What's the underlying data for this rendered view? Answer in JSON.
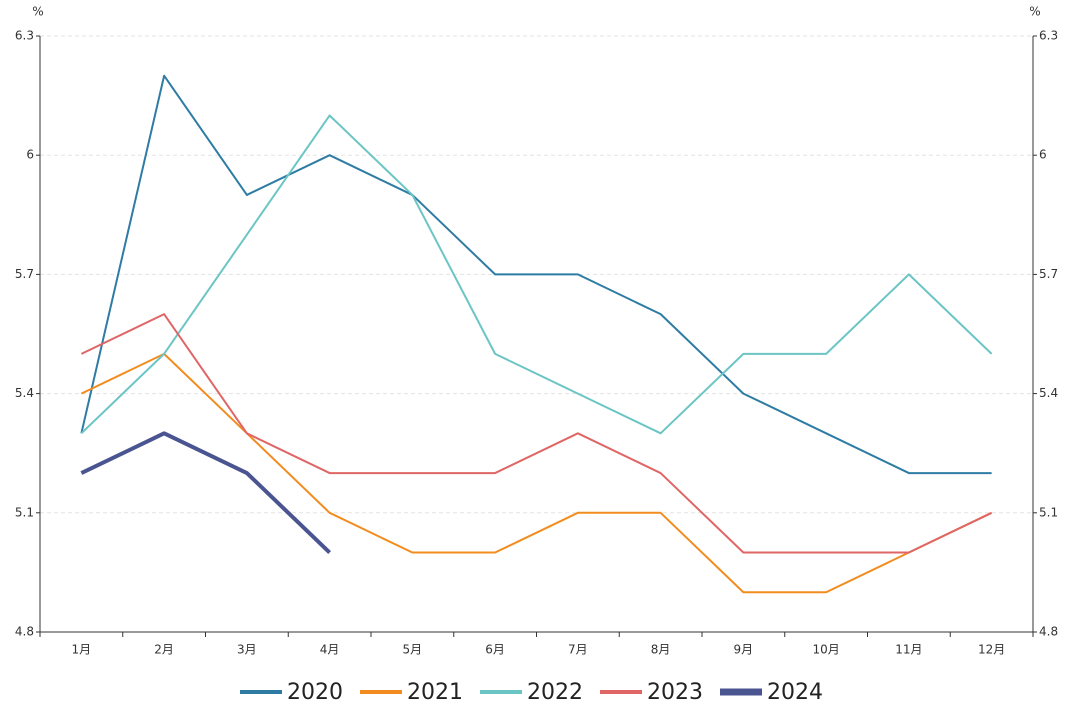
{
  "chart_data": {
    "type": "line",
    "ylabel": "%",
    "y2label": "%",
    "categories": [
      "1月",
      "2月",
      "3月",
      "4月",
      "5月",
      "6月",
      "7月",
      "8月",
      "9月",
      "10月",
      "11月",
      "12月"
    ],
    "series": [
      {
        "name": "2020",
        "color": "#2e7ca3",
        "values": [
          5.3,
          6.2,
          5.9,
          6.0,
          5.9,
          5.7,
          5.7,
          5.6,
          5.4,
          5.3,
          5.2,
          5.2
        ]
      },
      {
        "name": "2021",
        "color": "#f28c1e",
        "values": [
          5.4,
          5.5,
          5.3,
          5.1,
          5.0,
          5.0,
          5.1,
          5.1,
          4.9,
          4.9,
          5.0,
          5.1
        ]
      },
      {
        "name": "2022",
        "color": "#6cc5c5",
        "values": [
          5.3,
          5.5,
          5.8,
          6.1,
          5.9,
          5.5,
          5.4,
          5.3,
          5.5,
          5.5,
          5.7,
          5.5
        ]
      },
      {
        "name": "2023",
        "color": "#e06666",
        "values": [
          5.5,
          5.6,
          5.3,
          5.2,
          5.2,
          5.2,
          5.3,
          5.2,
          5.0,
          5.0,
          5.0,
          5.1
        ]
      },
      {
        "name": "2024",
        "color": "#4a5490",
        "values": [
          5.2,
          5.3,
          5.2,
          5.0,
          null,
          null,
          null,
          null,
          null,
          null,
          null,
          null
        ]
      }
    ],
    "ylim": [
      4.8,
      6.3
    ],
    "yticks": [
      4.8,
      5.1,
      5.4,
      5.7,
      6,
      6.3
    ],
    "y2lim": [
      4.8,
      6.3
    ],
    "y2ticks": [
      4.8,
      5.1,
      5.4,
      5.7,
      6,
      6.3
    ],
    "grid": true
  }
}
